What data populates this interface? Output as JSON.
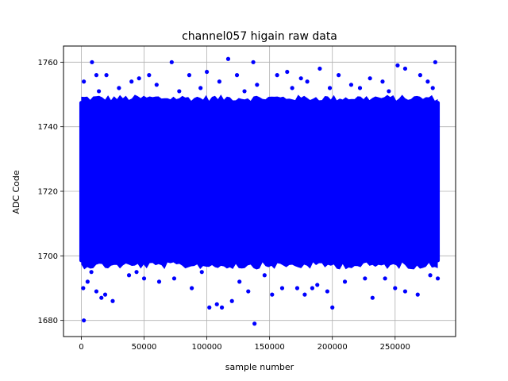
{
  "chart_data": {
    "type": "scatter",
    "title": "channel057 higain raw data",
    "xlabel": "sample number",
    "ylabel": "ADC Code",
    "xlim": [
      -14200,
      298200
    ],
    "ylim": [
      1675,
      1765
    ],
    "grid": true,
    "marker_color": "#0000ff",
    "x_ticks": [
      0,
      50000,
      100000,
      150000,
      200000,
      250000
    ],
    "x_tick_labels": [
      "0",
      "50000",
      "100000",
      "150000",
      "200000",
      "250000"
    ],
    "y_ticks": [
      1680,
      1700,
      1720,
      1740,
      1760
    ],
    "y_tick_labels": [
      "1680",
      "1700",
      "1720",
      "1740",
      "1760"
    ],
    "sample_range": [
      0,
      284000
    ],
    "dense_band": [
      1698,
      1748
    ],
    "series": [
      {
        "points": [
          [
            8500,
            1760
          ],
          [
            72000,
            1760
          ],
          [
            117000,
            1761
          ],
          [
            137000,
            1760
          ],
          [
            282000,
            1760
          ],
          [
            252000,
            1759
          ],
          [
            164000,
            1757
          ],
          [
            100000,
            1757
          ],
          [
            190000,
            1758
          ],
          [
            258000,
            1758
          ],
          [
            2000,
            1754
          ],
          [
            12000,
            1756
          ],
          [
            20000,
            1756
          ],
          [
            46000,
            1755
          ],
          [
            54000,
            1756
          ],
          [
            86000,
            1756
          ],
          [
            124000,
            1756
          ],
          [
            156000,
            1756
          ],
          [
            175000,
            1755
          ],
          [
            205000,
            1756
          ],
          [
            230000,
            1755
          ],
          [
            270000,
            1756
          ],
          [
            40000,
            1754
          ],
          [
            110000,
            1754
          ],
          [
            180000,
            1754
          ],
          [
            240000,
            1754
          ],
          [
            60000,
            1753
          ],
          [
            140000,
            1753
          ],
          [
            215000,
            1753
          ],
          [
            276000,
            1754
          ],
          [
            30000,
            1752
          ],
          [
            95000,
            1752
          ],
          [
            130000,
            1751
          ],
          [
            168000,
            1752
          ],
          [
            198000,
            1752
          ],
          [
            245000,
            1751
          ],
          [
            280000,
            1752
          ],
          [
            14000,
            1751
          ],
          [
            78000,
            1751
          ],
          [
            222000,
            1752
          ],
          [
            1500,
            1690
          ],
          [
            5000,
            1692
          ],
          [
            12000,
            1689
          ],
          [
            16000,
            1687
          ],
          [
            19000,
            1688
          ],
          [
            25000,
            1686
          ],
          [
            38000,
            1694
          ],
          [
            50000,
            1693
          ],
          [
            62000,
            1692
          ],
          [
            74000,
            1693
          ],
          [
            88000,
            1690
          ],
          [
            102000,
            1684
          ],
          [
            108000,
            1685
          ],
          [
            112000,
            1684
          ],
          [
            120000,
            1686
          ],
          [
            126000,
            1692
          ],
          [
            133000,
            1689
          ],
          [
            138000,
            1679
          ],
          [
            152000,
            1688
          ],
          [
            160000,
            1690
          ],
          [
            172000,
            1690
          ],
          [
            178000,
            1688
          ],
          [
            184000,
            1690
          ],
          [
            188000,
            1691
          ],
          [
            196000,
            1689
          ],
          [
            200000,
            1684
          ],
          [
            210000,
            1692
          ],
          [
            226000,
            1693
          ],
          [
            232000,
            1687
          ],
          [
            242000,
            1693
          ],
          [
            250000,
            1690
          ],
          [
            258000,
            1689
          ],
          [
            268000,
            1688
          ],
          [
            278000,
            1694
          ],
          [
            284000,
            1693
          ],
          [
            2000,
            1680
          ],
          [
            8000,
            1695
          ],
          [
            44000,
            1695
          ],
          [
            96000,
            1695
          ],
          [
            146000,
            1694
          ]
        ]
      }
    ]
  }
}
